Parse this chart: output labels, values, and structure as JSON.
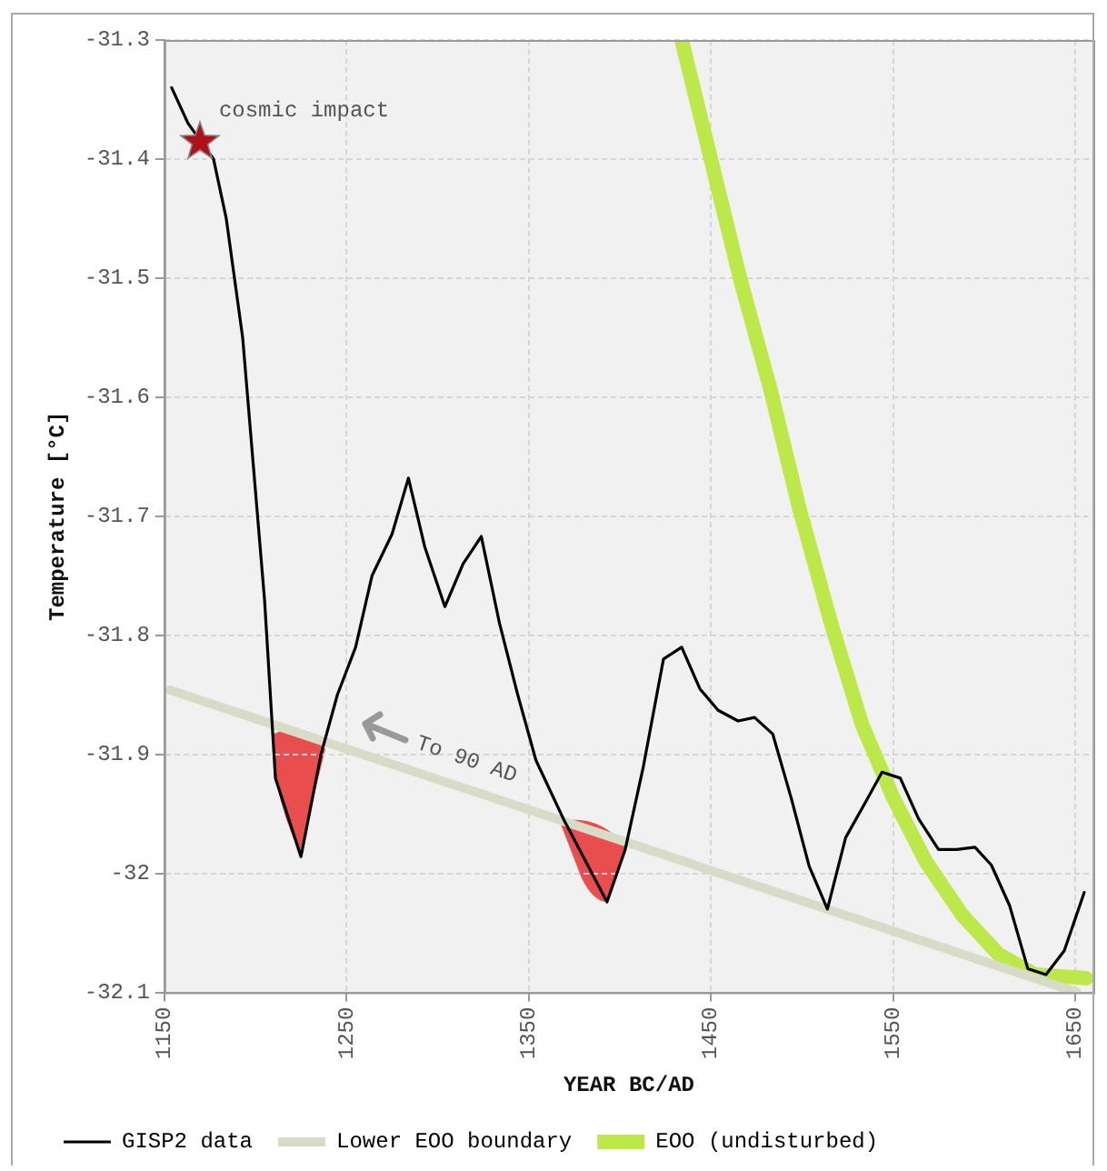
{
  "chart_data": {
    "type": "line",
    "xlabel": "YEAR BC/AD",
    "ylabel": "Temperature [°C]",
    "xlim": [
      1150,
      1660
    ],
    "xticks": [
      1150,
      1250,
      1350,
      1450,
      1550,
      1650
    ],
    "ylim": [
      -32.1,
      -31.3
    ],
    "yticks": [
      -32.1,
      -32,
      -31.9,
      -31.8,
      -31.7,
      -31.6,
      -31.5,
      -31.4,
      -31.3
    ],
    "grid": true,
    "legend": "bottom",
    "marker": "none",
    "line_style": "solid",
    "annotations": [
      {
        "text": "cosmic impact",
        "x": 1170,
        "y": -31.385
      },
      "To 90 AD"
    ],
    "series": [
      {
        "name": "GISP2 data",
        "color": "#000000",
        "x": [
          1154,
          1163,
          1177,
          1184,
          1193,
          1205,
          1211,
          1225,
          1236,
          1245,
          1255,
          1264,
          1275,
          1284,
          1293,
          1304,
          1314,
          1324,
          1334,
          1344,
          1354,
          1369,
          1393,
          1403,
          1413,
          1424,
          1434,
          1444,
          1454,
          1465,
          1474,
          1484,
          1494,
          1504,
          1514,
          1524,
          1535,
          1544,
          1554,
          1564,
          1575,
          1585,
          1595,
          1604,
          1614,
          1624,
          1634,
          1644,
          1655
        ],
        "values": [
          -31.34,
          -31.37,
          -31.4,
          -31.45,
          -31.55,
          -31.77,
          -31.92,
          -31.986,
          -31.9,
          -31.85,
          -31.81,
          -31.75,
          -31.715,
          -31.668,
          -31.726,
          -31.776,
          -31.74,
          -31.717,
          -31.79,
          -31.85,
          -31.905,
          -31.954,
          -32.024,
          -31.98,
          -31.91,
          -31.82,
          -31.81,
          -31.845,
          -31.863,
          -31.872,
          -31.869,
          -31.883,
          -31.936,
          -31.994,
          -32.03,
          -31.97,
          -31.94,
          -31.915,
          -31.92,
          -31.954,
          -31.98,
          -31.98,
          -31.978,
          -31.993,
          -32.027,
          -32.08,
          -32.085,
          -32.065,
          -32.016
        ]
      },
      {
        "name": "Lower EOO boundary",
        "color": "#d8dcc6",
        "x": [
          1153,
          1651
        ],
        "values": [
          -31.846,
          -32.1
        ]
      },
      {
        "name": "EOO (undisturbed)",
        "color": "#bde84a",
        "x": [
          1434,
          1450,
          1466,
          1483,
          1498,
          1516,
          1533,
          1550,
          1568,
          1588,
          1608,
          1628,
          1656
        ],
        "values": [
          -31.3,
          -31.4,
          -31.5,
          -31.595,
          -31.69,
          -31.79,
          -31.875,
          -31.936,
          -31.99,
          -32.035,
          -32.068,
          -32.085,
          -32.088
        ]
      }
    ]
  }
}
